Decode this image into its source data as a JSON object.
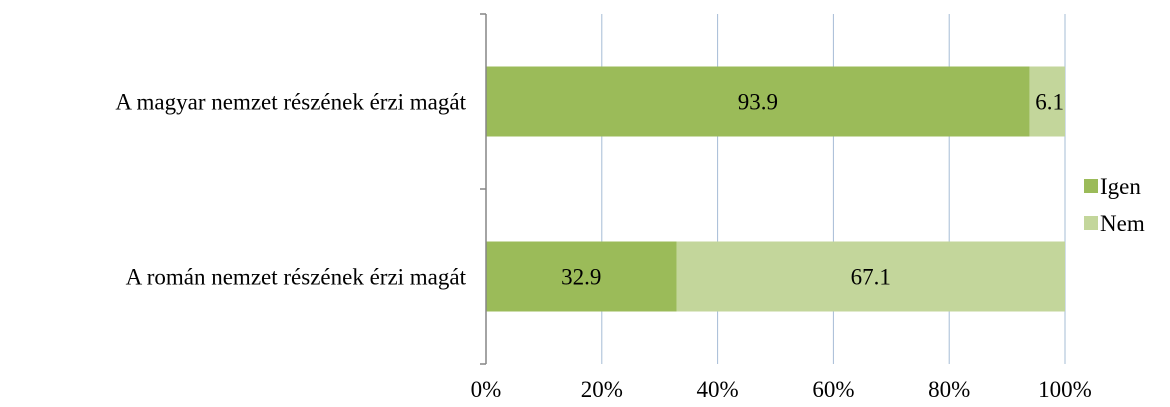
{
  "chart_data": {
    "type": "bar",
    "orientation": "horizontal",
    "stacked": "percent",
    "categories": [
      "A magyar nemzet részének érzi magát",
      "A román nemzet részének érzi magát"
    ],
    "series": [
      {
        "name": "Igen",
        "color": "#9bbb59",
        "values": [
          93.9,
          32.9
        ]
      },
      {
        "name": "Nem",
        "color": "#c3d69b",
        "values": [
          6.1,
          67.1
        ]
      }
    ],
    "x_ticks": [
      "0%",
      "20%",
      "40%",
      "60%",
      "80%",
      "100%"
    ],
    "xlim": [
      0,
      100
    ],
    "grid": "vertical",
    "gridline_color": "#a6bcd6",
    "legend_position": "right",
    "title": "",
    "xlabel": "",
    "ylabel": ""
  }
}
